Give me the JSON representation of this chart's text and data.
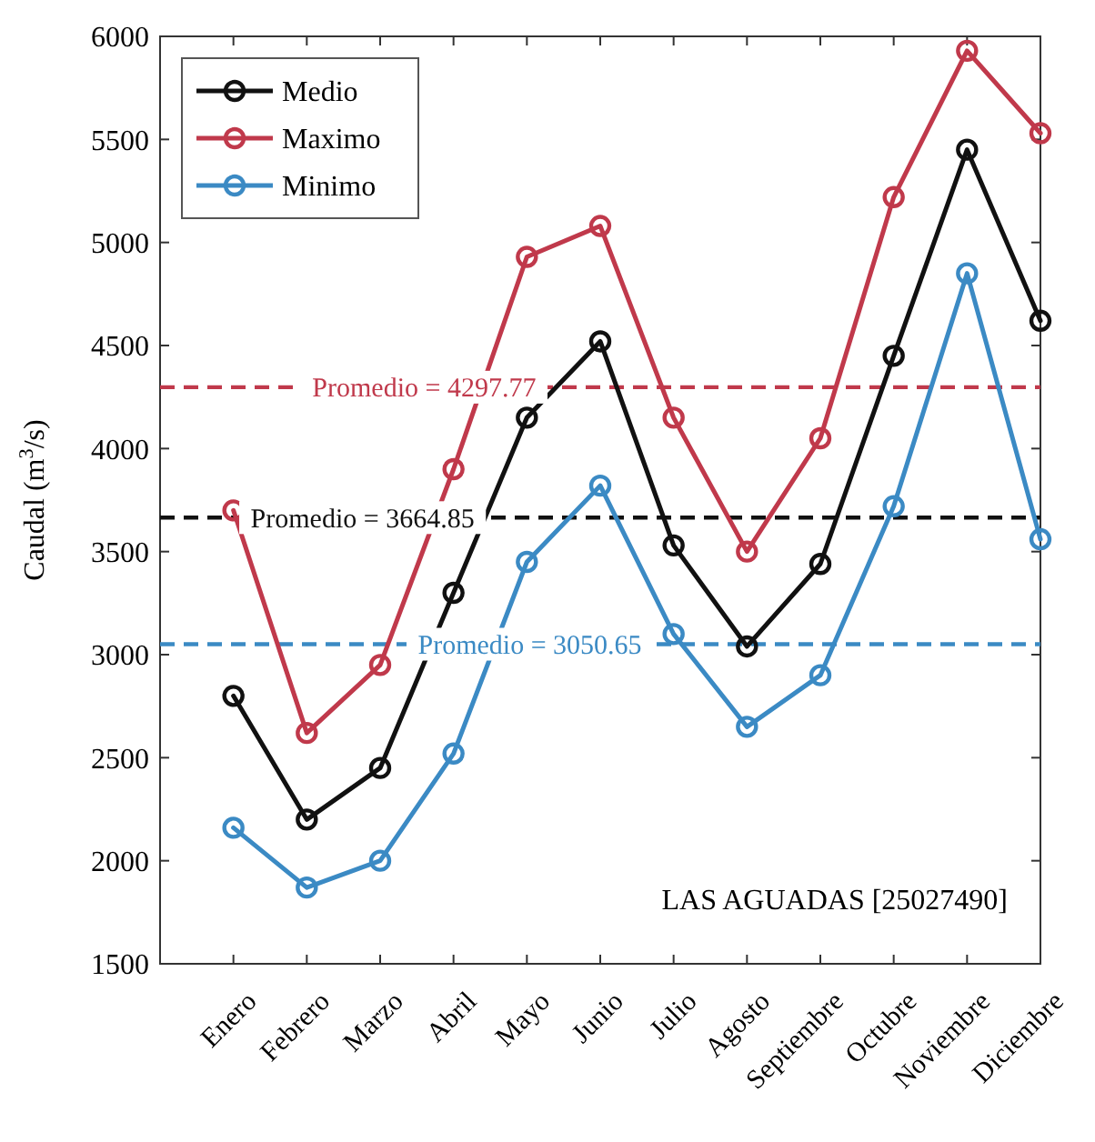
{
  "chart_data": {
    "type": "line",
    "ylabel": "Caudal (m$^{3}$/s)",
    "categories": [
      "Enero",
      "Febrero",
      "Marzo",
      "Abril",
      "Mayo",
      "Junio",
      "Julio",
      "Agosto",
      "Septiembre",
      "Octubre",
      "Noviembre",
      "Diciembre"
    ],
    "series": [
      {
        "name": "Medio",
        "color": "#111111",
        "values": [
          2800,
          2200,
          2450,
          3300,
          4150,
          4520,
          3530,
          3040,
          3440,
          4450,
          5450,
          4620
        ]
      },
      {
        "name": "Maximo",
        "color": "#c0394b",
        "values": [
          3700,
          2620,
          2950,
          3900,
          4930,
          5080,
          4150,
          3500,
          4050,
          5220,
          5930,
          5530
        ]
      },
      {
        "name": "Minimo",
        "color": "#3b8ac4",
        "values": [
          2160,
          1870,
          2000,
          2520,
          3450,
          3820,
          3100,
          2650,
          2900,
          3720,
          4850,
          3560
        ]
      }
    ],
    "ylim": [
      1500,
      6000
    ],
    "yticks": [
      1500,
      2000,
      2500,
      3000,
      3500,
      4000,
      4500,
      5000,
      5500,
      6000
    ],
    "marker": "circle",
    "line_style": "solid",
    "grid": false,
    "legend": "top left",
    "ref_lines": [
      {
        "axis": "y",
        "value": 4297.77,
        "label": "Promedio = 4297.77",
        "color": "#c0394b",
        "line_style": "dashed"
      },
      {
        "axis": "y",
        "value": 3664.85,
        "label": "Promedio = 3664.85",
        "color": "#111111",
        "line_style": "dashed"
      },
      {
        "axis": "y",
        "value": 3050.65,
        "label": "Promedio = 3050.65",
        "color": "#3b8ac4",
        "line_style": "dashed"
      }
    ],
    "annotations": [
      "LAS AGUADAS [25027490]"
    ]
  }
}
